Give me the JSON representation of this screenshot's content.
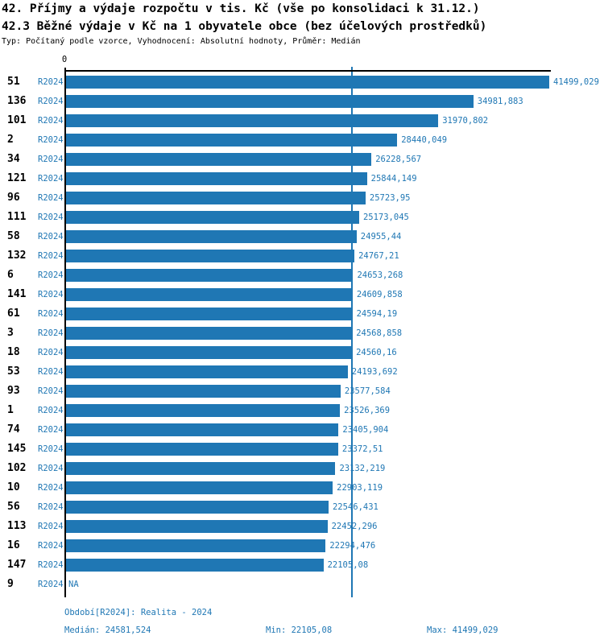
{
  "header": {
    "title_line1": "42. Příjmy a výdaje rozpočtu v tis. Kč (vše po konsolidaci k 31.12.)",
    "title_line2": "42.3 Běžné výdaje v Kč na 1 obyvatele obce (bez účelových prostředků)",
    "subtitle": "Typ: Počítaný podle vzorce, Vyhodnocení: Absolutní hodnoty, Průměr: Medián"
  },
  "colors": {
    "bar": "#1F77B4",
    "accent_text": "#1F77B4",
    "axis": "#000000"
  },
  "chart_data": {
    "type": "bar",
    "orientation": "horizontal",
    "axis_zero_label": "0",
    "xlim": [
      0,
      41499.029
    ],
    "median_value": 24581.524,
    "period_label": "R2024",
    "na_label": "NA",
    "grid": false,
    "rows": [
      {
        "id": "51",
        "value": 41499.029,
        "value_label": "41499,029"
      },
      {
        "id": "136",
        "value": 34981.883,
        "value_label": "34981,883"
      },
      {
        "id": "101",
        "value": 31970.802,
        "value_label": "31970,802"
      },
      {
        "id": "2",
        "value": 28440.049,
        "value_label": "28440,049"
      },
      {
        "id": "34",
        "value": 26228.567,
        "value_label": "26228,567"
      },
      {
        "id": "121",
        "value": 25844.149,
        "value_label": "25844,149"
      },
      {
        "id": "96",
        "value": 25723.95,
        "value_label": "25723,95"
      },
      {
        "id": "111",
        "value": 25173.045,
        "value_label": "25173,045"
      },
      {
        "id": "58",
        "value": 24955.44,
        "value_label": "24955,44"
      },
      {
        "id": "132",
        "value": 24767.21,
        "value_label": "24767,21"
      },
      {
        "id": "6",
        "value": 24653.268,
        "value_label": "24653,268"
      },
      {
        "id": "141",
        "value": 24609.858,
        "value_label": "24609,858"
      },
      {
        "id": "61",
        "value": 24594.19,
        "value_label": "24594,19"
      },
      {
        "id": "3",
        "value": 24568.858,
        "value_label": "24568,858"
      },
      {
        "id": "18",
        "value": 24560.16,
        "value_label": "24560,16"
      },
      {
        "id": "53",
        "value": 24193.692,
        "value_label": "24193,692"
      },
      {
        "id": "93",
        "value": 23577.584,
        "value_label": "23577,584"
      },
      {
        "id": "1",
        "value": 23526.369,
        "value_label": "23526,369"
      },
      {
        "id": "74",
        "value": 23405.904,
        "value_label": "23405,904"
      },
      {
        "id": "145",
        "value": 23372.51,
        "value_label": "23372,51"
      },
      {
        "id": "102",
        "value": 23132.219,
        "value_label": "23132,219"
      },
      {
        "id": "10",
        "value": 22903.119,
        "value_label": "22903,119"
      },
      {
        "id": "56",
        "value": 22546.431,
        "value_label": "22546,431"
      },
      {
        "id": "113",
        "value": 22452.296,
        "value_label": "22452,296"
      },
      {
        "id": "16",
        "value": 22294.476,
        "value_label": "22294,476"
      },
      {
        "id": "147",
        "value": 22105.08,
        "value_label": "22105,08"
      },
      {
        "id": "9",
        "value": null,
        "value_label": "NA"
      }
    ]
  },
  "footer": {
    "period_line": "Období[R2024]: Realita - 2024",
    "median_line": "Medián: 24581,524",
    "min_line": "Min: 22105,08",
    "max_line": "Max: 41499,029"
  }
}
